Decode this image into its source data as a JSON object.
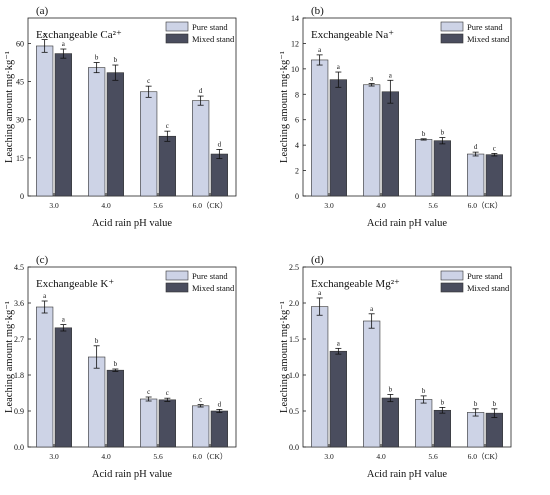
{
  "colors": {
    "pure": "#cdd3e6",
    "mixed": "#4a4d5e",
    "bar_stroke": "#333333"
  },
  "chart_data": [
    {
      "type": "bar",
      "panel": "(a)",
      "title": "Exchangeable Ca²⁺",
      "xlabel": "Acid rain pH value",
      "ylabel": "Leaching amount mg·kg⁻¹",
      "categories": [
        "3.0",
        "4.0",
        "5.6",
        "6.0（CK）"
      ],
      "ylim": [
        0,
        70
      ],
      "yticks": [
        "0",
        "15",
        "30",
        "45",
        "60"
      ],
      "ytick_values": [
        0,
        15,
        30,
        45,
        60
      ],
      "legend": "top-right",
      "series": [
        {
          "name": "Pure stand",
          "values": [
            59,
            50.5,
            41,
            37.5
          ],
          "errors": [
            2.5,
            2,
            2.2,
            1.8
          ],
          "labels": [
            "a",
            "b",
            "c",
            "d"
          ]
        },
        {
          "name": "Mixed stand",
          "values": [
            56,
            48.5,
            23.5,
            16.5
          ],
          "errors": [
            1.8,
            3,
            2,
            1.8
          ],
          "labels": [
            "a",
            "b",
            "c",
            "d"
          ]
        }
      ]
    },
    {
      "type": "bar",
      "panel": "(b)",
      "title": "Exchangeable Na⁺",
      "xlabel": "Acid rain pH value",
      "ylabel": "Leaching amount mg·kg⁻¹",
      "categories": [
        "3.0",
        "4.0",
        "5.6",
        "6.0（CK）"
      ],
      "ylim": [
        0,
        14
      ],
      "yticks": [
        "0",
        "2",
        "4",
        "6",
        "8",
        "10",
        "12",
        "14"
      ],
      "ytick_values": [
        0,
        2,
        4,
        6,
        8,
        10,
        12,
        14
      ],
      "legend": "top-right",
      "series": [
        {
          "name": "Pure stand",
          "values": [
            10.7,
            8.75,
            4.45,
            3.3
          ],
          "errors": [
            0.4,
            0.1,
            0.05,
            0.15
          ],
          "labels": [
            "a",
            "a",
            "b",
            "d"
          ]
        },
        {
          "name": "Mixed stand",
          "values": [
            9.15,
            8.2,
            4.35,
            3.25
          ],
          "errors": [
            0.6,
            0.9,
            0.25,
            0.1
          ],
          "labels": [
            "a",
            "a",
            "b",
            "c"
          ]
        }
      ]
    },
    {
      "type": "bar",
      "panel": "(c)",
      "title": "Exchangeable K⁺",
      "xlabel": "Acid rain pH value",
      "ylabel": "Leaching amount mg·kg⁻¹",
      "categories": [
        "3.0",
        "4.0",
        "5.6",
        "6.0（CK）"
      ],
      "ylim": [
        0,
        4.5
      ],
      "yticks": [
        "0.0",
        "0.9",
        "1.8",
        "2.7",
        "3.6",
        "4.5"
      ],
      "ytick_values": [
        0,
        0.9,
        1.8,
        2.7,
        3.6,
        4.5
      ],
      "legend": "top-right",
      "series": [
        {
          "name": "Pure stand",
          "values": [
            3.5,
            2.25,
            1.2,
            1.03
          ],
          "errors": [
            0.15,
            0.28,
            0.05,
            0.03
          ],
          "labels": [
            "a",
            "b",
            "c",
            "c"
          ]
        },
        {
          "name": "Mixed stand",
          "values": [
            2.98,
            1.92,
            1.18,
            0.9
          ],
          "errors": [
            0.08,
            0.03,
            0.04,
            0.04
          ],
          "labels": [
            "a",
            "b",
            "c",
            "d"
          ]
        }
      ]
    },
    {
      "type": "bar",
      "panel": "(d)",
      "title": "Exchangeable Mg²⁺",
      "xlabel": "Acid rain pH value",
      "ylabel": "Leaching amount mg·kg⁻¹",
      "categories": [
        "3.0",
        "4.0",
        "5.6",
        "6.0（CK）"
      ],
      "ylim": [
        0,
        2.5
      ],
      "yticks": [
        "0.0",
        "0.5",
        "1.0",
        "1.5",
        "2.0",
        "2.5"
      ],
      "ytick_values": [
        0,
        0.5,
        1,
        1.5,
        2,
        2.5
      ],
      "legend": "top-right",
      "series": [
        {
          "name": "Pure stand",
          "values": [
            1.95,
            1.75,
            0.66,
            0.48
          ],
          "errors": [
            0.12,
            0.1,
            0.05,
            0.05
          ],
          "labels": [
            "a",
            "a",
            "b",
            "b"
          ]
        },
        {
          "name": "Mixed stand",
          "values": [
            1.33,
            0.68,
            0.51,
            0.47
          ],
          "errors": [
            0.04,
            0.05,
            0.04,
            0.06
          ],
          "labels": [
            "a",
            "b",
            "b",
            "b"
          ]
        }
      ]
    }
  ]
}
